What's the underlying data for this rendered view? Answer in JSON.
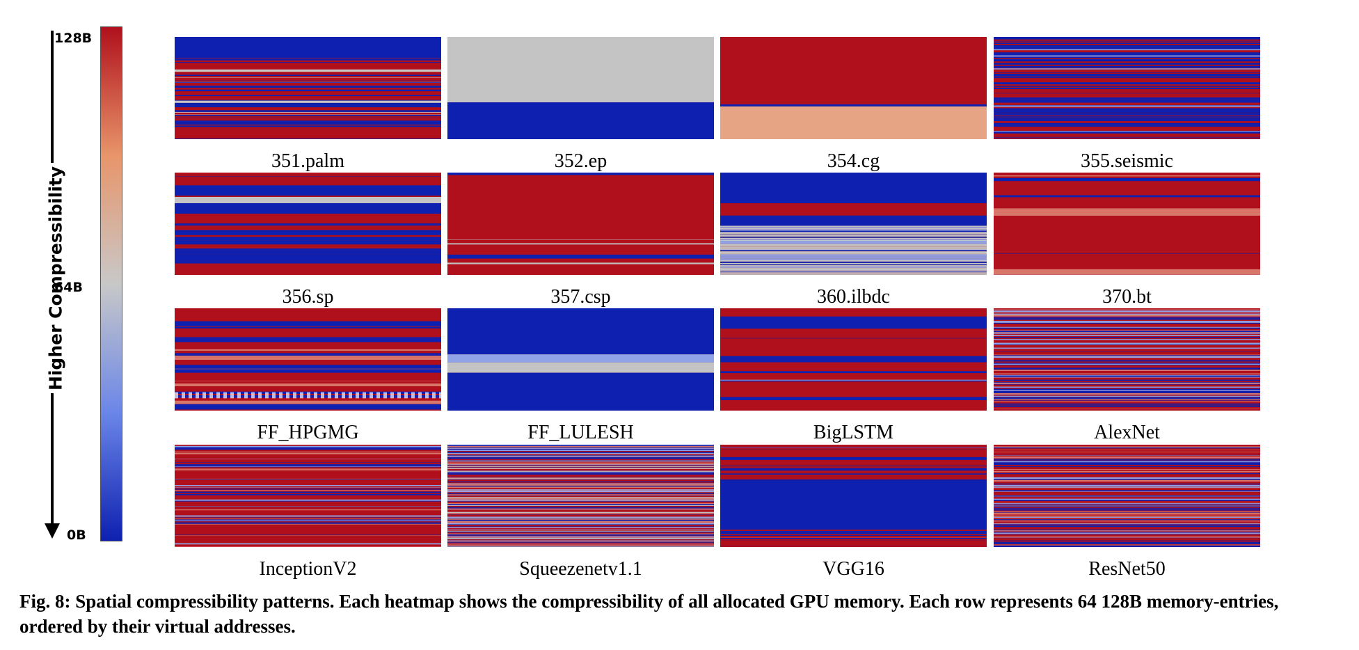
{
  "chart_data": {
    "type": "heatmap",
    "title": "",
    "colorbar": {
      "ticks": [
        "128B",
        "64B",
        "0B"
      ],
      "label": "Higher Compressibility",
      "colors": [
        "#0d20b0",
        "#6b86e8",
        "#c8c8c8",
        "#e8956a",
        "#b0101c"
      ]
    },
    "panels": [
      {
        "name": "351.palm",
        "pattern": "mostly red/blue stripes with a blue top band and light stripes"
      },
      {
        "name": "352.ep",
        "pattern": "gray upper 64%, blue lower 36%"
      },
      {
        "name": "354.cg",
        "pattern": "red upper 68%, light orange lower 32%"
      },
      {
        "name": "355.seismic",
        "pattern": "dense red/blue stripes"
      },
      {
        "name": "356.sp",
        "pattern": "alternating red and blue bands"
      },
      {
        "name": "357.csp",
        "pattern": "mostly red with thin blue and gray lines"
      },
      {
        "name": "360.ilbdc",
        "pattern": "blue top band, red band, gray/blue noisy lower half"
      },
      {
        "name": "370.bt",
        "pattern": "mostly red with blue stripes"
      },
      {
        "name": "FF_HPGMG",
        "pattern": "red/blue checker-like stripes"
      },
      {
        "name": "FF_LULESH",
        "pattern": "mostly blue with gray band"
      },
      {
        "name": "BigLSTM",
        "pattern": "blue top band, mostly red"
      },
      {
        "name": "AlexNet",
        "pattern": "noisy red/blue"
      },
      {
        "name": "InceptionV2",
        "pattern": "noisy mostly red with blue"
      },
      {
        "name": "Squeezenetv1.1",
        "pattern": "noisy mixed red/blue/gray"
      },
      {
        "name": "VGG16",
        "pattern": "red top, large blue middle block, red bottom"
      },
      {
        "name": "ResNet50",
        "pattern": "noisy red/blue with blue band near top"
      }
    ]
  },
  "caption": "Fig. 8: Spatial compressibility patterns. Each heatmap shows the compressibility of all allocated GPU memory. Each row represents 64 128B memory-entries, ordered by their virtual addresses."
}
